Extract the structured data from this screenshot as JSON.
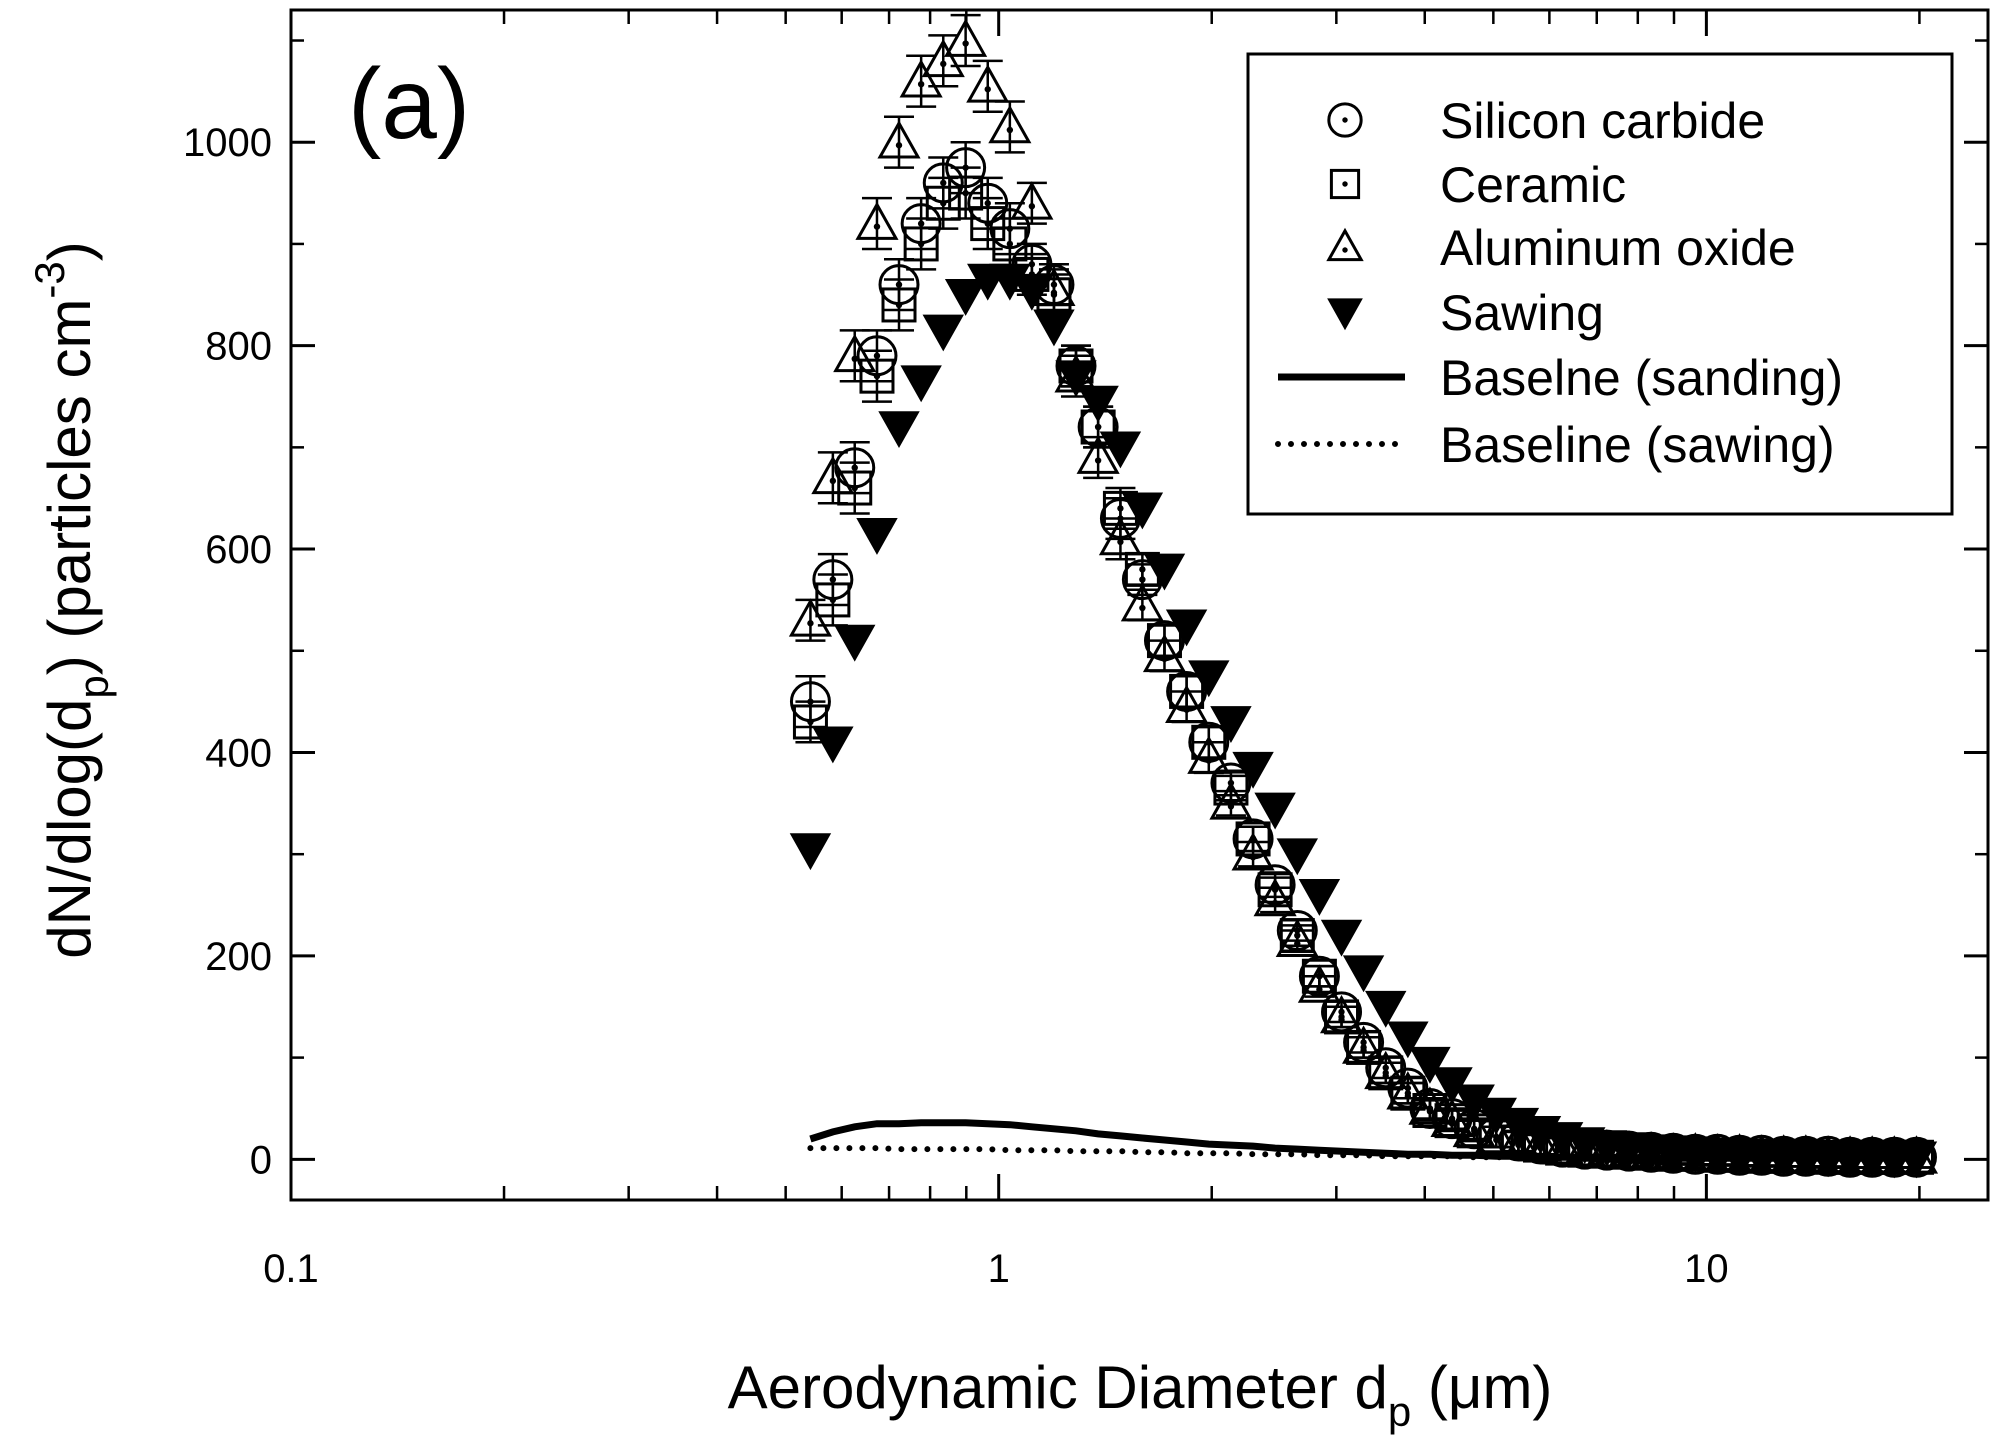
{
  "panel_label": "(a)",
  "chart_data": {
    "type": "scatter",
    "x_scale": "log",
    "xlim": [
      0.1,
      25
    ],
    "ylim": [
      -40,
      1130
    ],
    "xlabel": {
      "main": "Aerodynamic Diameter d",
      "sub": "p",
      "unit": " (μm)"
    },
    "ylabel": {
      "pre": "dN/dlog(d",
      "sub": "p",
      "mid": ") (particles cm",
      "sup": "-3",
      "post": ")"
    },
    "x_ticks": [
      {
        "value": 0.1,
        "label": "0.1"
      },
      {
        "value": 1,
        "label": "1"
      },
      {
        "value": 10,
        "label": "10"
      }
    ],
    "x_minor_ticks": [
      0.2,
      0.3,
      0.4,
      0.5,
      0.6,
      0.7,
      0.8,
      0.9,
      2,
      3,
      4,
      5,
      6,
      7,
      8,
      9,
      20
    ],
    "y_ticks": [
      {
        "value": 0,
        "label": "0"
      },
      {
        "value": 200,
        "label": "200"
      },
      {
        "value": 400,
        "label": "400"
      },
      {
        "value": 600,
        "label": "600"
      },
      {
        "value": 800,
        "label": "800"
      },
      {
        "value": 1000,
        "label": "1000"
      }
    ],
    "y_minor_ticks": [
      100,
      300,
      500,
      700,
      900,
      1100
    ],
    "legend_position": "top-right",
    "x": [
      0.542,
      0.583,
      0.626,
      0.673,
      0.723,
      0.777,
      0.835,
      0.898,
      0.965,
      1.037,
      1.114,
      1.197,
      1.286,
      1.382,
      1.486,
      1.596,
      1.715,
      1.843,
      1.981,
      2.129,
      2.288,
      2.458,
      2.642,
      2.839,
      3.051,
      3.278,
      3.523,
      3.786,
      4.068,
      4.371,
      4.698,
      5.048,
      5.425,
      5.829,
      6.264,
      6.732,
      7.234,
      7.774,
      8.354,
      8.977,
      9.647,
      10.37,
      11.14,
      11.97,
      12.86,
      13.82,
      14.86,
      15.96,
      17.15,
      18.43,
      19.81
    ],
    "series": [
      {
        "name": "Silicon carbide",
        "marker": "circle-dot",
        "values": [
          450,
          570,
          680,
          790,
          860,
          920,
          960,
          975,
          940,
          915,
          880,
          860,
          780,
          720,
          630,
          570,
          510,
          460,
          410,
          370,
          315,
          270,
          225,
          180,
          145,
          115,
          90,
          70,
          50,
          40,
          30,
          22,
          18,
          15,
          12,
          10,
          9,
          8,
          7,
          6,
          5,
          5,
          4,
          4,
          3,
          3,
          3,
          2,
          2,
          2,
          2
        ],
        "errors": [
          25,
          25,
          25,
          25,
          25,
          25,
          25,
          25,
          25,
          25,
          20,
          20,
          20,
          20,
          20,
          15,
          15,
          15,
          15,
          12,
          12,
          12,
          10,
          10,
          10,
          10,
          10,
          10,
          10,
          10,
          10,
          10,
          10,
          10,
          10,
          10,
          10,
          10,
          10,
          10,
          10,
          10,
          10,
          10,
          10,
          10,
          10,
          10,
          10,
          10,
          10
        ]
      },
      {
        "name": "Ceramic",
        "marker": "square-dot",
        "values": [
          430,
          550,
          660,
          770,
          840,
          900,
          940,
          950,
          920,
          900,
          870,
          850,
          780,
          720,
          640,
          580,
          510,
          460,
          410,
          365,
          315,
          265,
          220,
          180,
          140,
          110,
          85,
          65,
          48,
          38,
          28,
          22,
          17,
          14,
          11,
          9,
          8,
          7,
          6,
          5,
          5,
          4,
          4,
          3,
          3,
          3,
          2,
          2,
          2,
          2,
          2
        ],
        "errors": [
          20,
          25,
          25,
          25,
          25,
          25,
          25,
          25,
          25,
          25,
          20,
          20,
          20,
          20,
          20,
          15,
          15,
          15,
          15,
          12,
          12,
          12,
          10,
          10,
          10,
          10,
          10,
          10,
          10,
          10,
          10,
          10,
          10,
          10,
          10,
          10,
          10,
          10,
          10,
          10,
          10,
          10,
          10,
          10,
          10,
          10,
          10,
          10,
          10,
          10,
          10
        ]
      },
      {
        "name": "Aluminum oxide",
        "marker": "triangle-dot",
        "values": [
          530,
          670,
          790,
          920,
          1000,
          1060,
          1080,
          1100,
          1055,
          1015,
          940,
          855,
          770,
          690,
          610,
          545,
          495,
          445,
          395,
          350,
          300,
          255,
          215,
          170,
          140,
          110,
          85,
          65,
          50,
          38,
          28,
          22,
          17,
          14,
          11,
          9,
          8,
          7,
          6,
          5,
          5,
          4,
          4,
          3,
          3,
          3,
          2,
          2,
          2,
          2,
          2
        ],
        "errors": [
          20,
          25,
          25,
          25,
          25,
          25,
          25,
          25,
          25,
          25,
          20,
          20,
          20,
          20,
          20,
          15,
          15,
          15,
          15,
          12,
          12,
          12,
          10,
          10,
          10,
          10,
          10,
          10,
          10,
          10,
          10,
          10,
          10,
          10,
          10,
          10,
          10,
          10,
          10,
          10,
          10,
          10,
          10,
          10,
          10,
          10,
          10,
          10,
          10,
          10,
          10
        ]
      },
      {
        "name": "Sawing",
        "marker": "triangle-down-filled",
        "values": [
          305,
          410,
          510,
          615,
          720,
          765,
          815,
          850,
          865,
          865,
          855,
          820,
          770,
          745,
          700,
          640,
          580,
          525,
          475,
          430,
          385,
          345,
          300,
          260,
          220,
          185,
          150,
          120,
          95,
          75,
          58,
          45,
          35,
          27,
          21,
          16,
          13,
          11,
          9,
          8,
          7,
          6,
          5,
          5,
          4,
          4,
          3,
          3,
          3,
          2,
          2
        ]
      },
      {
        "name": "Baselne (sanding)",
        "marker": "line-solid",
        "values": [
          20,
          27,
          32,
          35,
          35,
          36,
          36,
          36,
          35,
          34,
          32,
          30,
          28,
          25,
          23,
          21,
          19,
          17,
          15,
          14,
          13,
          11,
          10,
          9,
          8,
          7,
          6,
          5,
          5,
          4,
          4,
          3,
          3,
          3,
          2,
          2,
          2,
          2,
          1,
          1,
          1,
          1,
          1,
          1,
          1,
          1,
          1,
          1,
          1,
          1,
          1
        ]
      },
      {
        "name": "Baseline (sawing)",
        "marker": "line-dotted",
        "values": [
          11,
          11,
          11,
          11,
          10,
          10,
          10,
          10,
          10,
          9,
          9,
          9,
          8,
          8,
          8,
          7,
          7,
          6,
          6,
          6,
          5,
          5,
          5,
          4,
          4,
          4,
          3,
          3,
          3,
          3,
          2,
          2,
          2,
          2,
          2,
          2,
          1,
          1,
          1,
          1,
          1,
          1,
          1,
          1,
          1,
          1,
          1,
          1,
          1,
          1,
          1
        ]
      }
    ]
  }
}
